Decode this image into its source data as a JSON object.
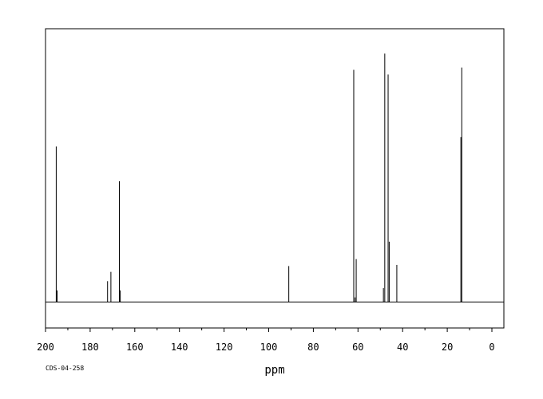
{
  "chart_data": {
    "type": "line",
    "subtype": "nmr-stick-spectrum",
    "title": "",
    "xlabel": "ppm",
    "ylabel": "",
    "xlim": [
      200,
      -5
    ],
    "x_reversed": true,
    "x_ticks": [
      200,
      180,
      160,
      140,
      120,
      100,
      80,
      60,
      40,
      20,
      0
    ],
    "ylim": [
      0,
      1
    ],
    "grid": false,
    "legend": "none",
    "line_color": "#000000",
    "peaks": [
      {
        "ppm": 195.2,
        "intensity": 0.67
      },
      {
        "ppm": 194.8,
        "intensity": 0.05
      },
      {
        "ppm": 172.2,
        "intensity": 0.09
      },
      {
        "ppm": 170.7,
        "intensity": 0.13
      },
      {
        "ppm": 166.9,
        "intensity": 0.52
      },
      {
        "ppm": 166.5,
        "intensity": 0.05
      },
      {
        "ppm": 91.0,
        "intensity": 0.155
      },
      {
        "ppm": 61.9,
        "intensity": 1.0
      },
      {
        "ppm": 61.3,
        "intensity": 0.02
      },
      {
        "ppm": 60.8,
        "intensity": 0.185
      },
      {
        "ppm": 48.6,
        "intensity": 0.06
      },
      {
        "ppm": 48.0,
        "intensity": 1.07
      },
      {
        "ppm": 46.5,
        "intensity": 0.98
      },
      {
        "ppm": 46.0,
        "intensity": 0.26
      },
      {
        "ppm": 42.6,
        "intensity": 0.16
      },
      {
        "ppm": 13.9,
        "intensity": 0.71
      },
      {
        "ppm": 13.5,
        "intensity": 1.01
      }
    ]
  },
  "code_label": "CDS-04-258"
}
